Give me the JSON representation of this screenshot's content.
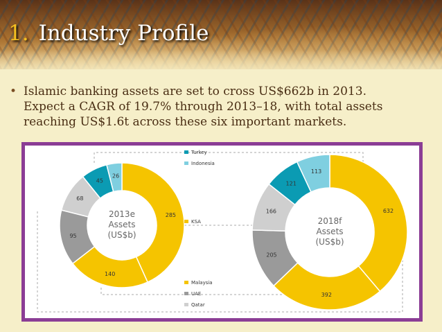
{
  "slide": {
    "title_number": "1.",
    "title_text": "Industry Profile",
    "bullet_symbol": "•",
    "bullet_lines": [
      "Islamic banking assets are set to cross US$662b in 2013.",
      "Expect a CAGR of 19.7% through 2013–18, with total assets",
      "reaching US$1.6t across these six important markets."
    ]
  },
  "colors": {
    "Turkey": "#0b9bb3",
    "Indonesia": "#7fcfe0",
    "KSA": "#f5c400",
    "Malaysia": "#f5c400",
    "UAE": "#9a9a9a",
    "Qatar": "#cfcfcf",
    "frame": "#8b3d95",
    "slide_bg": "#f6efc9"
  },
  "chart_data": [
    {
      "type": "pie",
      "center_label": [
        "2013e",
        "Assets",
        "(US$b)"
      ],
      "slices": [
        {
          "category": "KSA",
          "value": 285
        },
        {
          "category": "Malaysia",
          "value": 140
        },
        {
          "category": "UAE",
          "value": 95
        },
        {
          "category": "Qatar",
          "value": 68
        },
        {
          "category": "Turkey",
          "value": 45
        },
        {
          "category": "Indonesia",
          "value": 26
        }
      ]
    },
    {
      "type": "pie",
      "center_label": [
        "2018f",
        "Assets",
        "(US$b)"
      ],
      "slices": [
        {
          "category": "KSA",
          "value": 632
        },
        {
          "category": "Malaysia",
          "value": 392
        },
        {
          "category": "UAE",
          "value": 205
        },
        {
          "category": "Qatar",
          "value": 166
        },
        {
          "category": "Turkey",
          "value": 121
        },
        {
          "category": "Indonesia",
          "value": 113
        }
      ]
    }
  ],
  "legend": [
    "Turkey",
    "Indonesia",
    "KSA",
    "Malaysia",
    "UAE",
    "Qatar"
  ]
}
